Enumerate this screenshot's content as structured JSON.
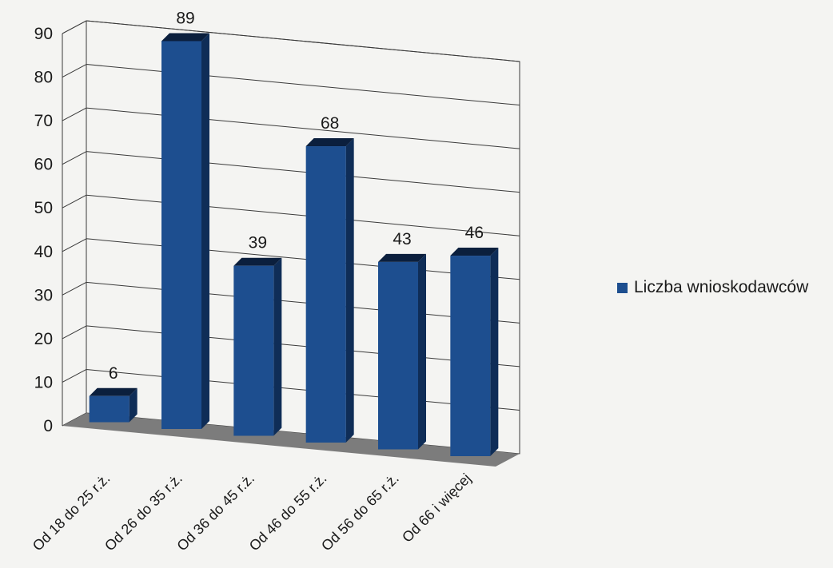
{
  "chart_data": {
    "type": "bar",
    "title": "",
    "xlabel": "",
    "ylabel": "",
    "ylim": [
      0,
      90
    ],
    "yticks": [
      0,
      10,
      20,
      30,
      40,
      50,
      60,
      70,
      80,
      90
    ],
    "grid": true,
    "legend_position": "right",
    "categories": [
      "Od 18 do 25 r.ż.",
      "Od 26 do 35 r.ż.",
      "Od 36 do 45 r.ż.",
      "Od 46 do 55 r.ż.",
      "Od 56 do 65 r.ż.",
      "Od 66 i więcej"
    ],
    "series": [
      {
        "name": "Liczba wnioskodawców",
        "values": [
          6,
          89,
          39,
          68,
          43,
          46
        ]
      }
    ],
    "data_labels": [
      "6",
      "89",
      "39",
      "68",
      "43",
      "46"
    ]
  },
  "colors": {
    "bar_front": "#1d4e8f",
    "bar_side": "#0f2d57",
    "bar_top": "#0b1f3d",
    "floor": "#7c7c7c",
    "grid": "#3a3a3a",
    "legend_swatch": "#1d4e8f"
  }
}
